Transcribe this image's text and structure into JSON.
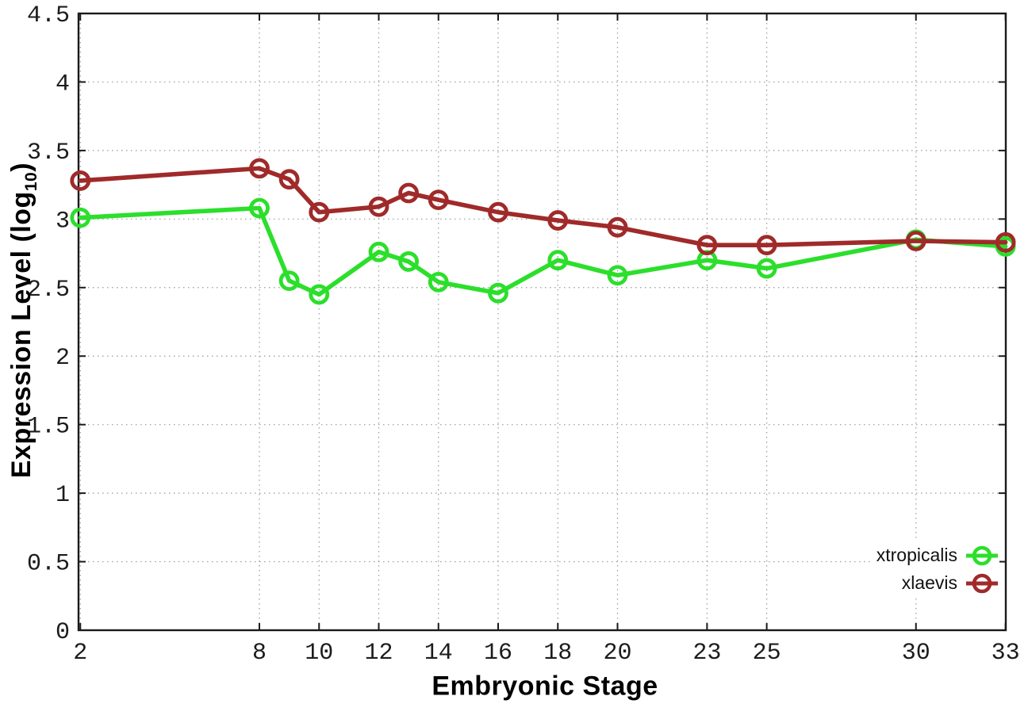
{
  "chart_data": {
    "type": "line",
    "title": "",
    "xlabel": "Embryonic Stage",
    "ylabel": "Expression Level (log10)",
    "ylabel_main": "Expression Level (log",
    "ylabel_sub": "10",
    "ylabel_close": ")",
    "x": [
      2,
      8,
      9,
      10,
      12,
      13,
      14,
      16,
      18,
      20,
      23,
      25,
      30,
      33
    ],
    "series": [
      {
        "name": "xtropicalis",
        "color": "#2bdf2b",
        "values": [
          3.01,
          3.08,
          2.55,
          2.45,
          2.76,
          2.69,
          2.54,
          2.46,
          2.7,
          2.59,
          2.7,
          2.64,
          2.85,
          2.8
        ]
      },
      {
        "name": "xlaevis",
        "color": "#a02a2a",
        "values": [
          3.28,
          3.37,
          3.29,
          3.05,
          3.09,
          3.19,
          3.14,
          3.05,
          2.99,
          2.94,
          2.81,
          2.81,
          2.84,
          2.83
        ]
      }
    ],
    "xticks": [
      2,
      8,
      10,
      12,
      14,
      16,
      18,
      20,
      23,
      25,
      30,
      33
    ],
    "xtick_labels": [
      "2",
      "8",
      "10",
      "12",
      "14",
      "16",
      "18",
      "20",
      "23",
      "25",
      "30",
      "33"
    ],
    "yticks": [
      0,
      0.5,
      1,
      1.5,
      2,
      2.5,
      3,
      3.5,
      4,
      4.5
    ],
    "ytick_labels": [
      "0",
      "0.5",
      "1",
      "1.5",
      "2",
      "2.5",
      "3",
      "3.5",
      "4",
      "4.5"
    ],
    "xlim": [
      1.94,
      33.01
    ],
    "ylim": [
      0,
      4.5
    ],
    "grid": true,
    "legend_position": "bottom-right",
    "marker": "open-circle",
    "colors": {
      "border": "#1a1a1a",
      "grid": "#999999",
      "tick_text": "#1c1c1c",
      "axis_title_text": "#000000"
    }
  }
}
